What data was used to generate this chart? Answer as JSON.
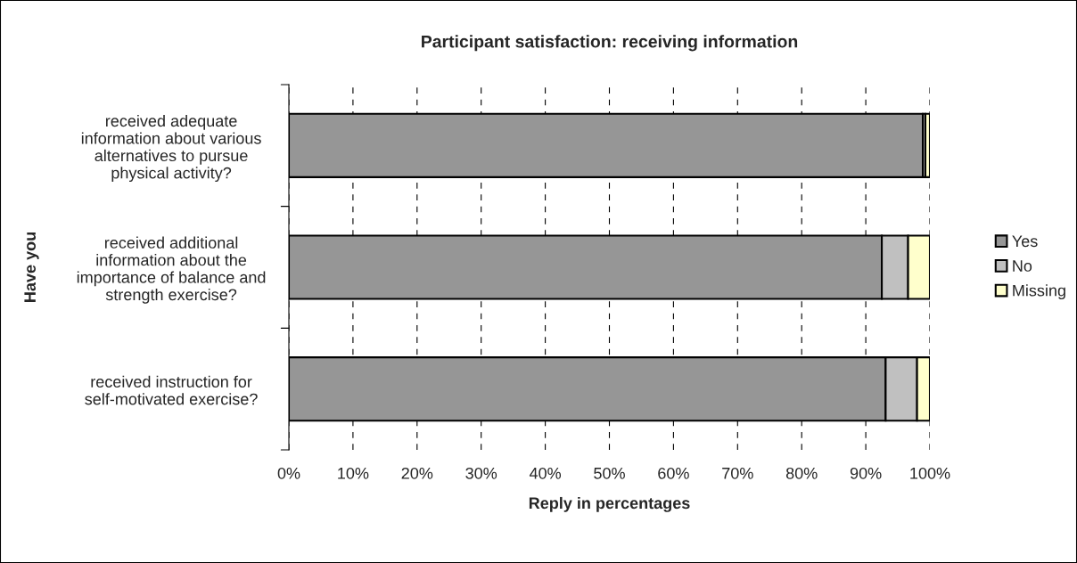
{
  "chart_data": {
    "type": "bar",
    "orientation": "horizontal",
    "stacked": true,
    "title": "Participant satisfaction: receiving information",
    "xlabel": "Reply in percentages",
    "ylabel": "Have you",
    "categories": [
      "received adequate\ninformation about various\nalternatives to pursue\nphysical activity?",
      "received additional\ninformation about the\nimportance of balance and\nstrength exercise?",
      "received instruction for\nself-motivated exercise?"
    ],
    "series": [
      {
        "name": "Yes",
        "color": "#969696",
        "values": [
          98.9,
          92.5,
          93.1
        ]
      },
      {
        "name": "No",
        "color": "#c0c0c0",
        "values": [
          0.4,
          4.1,
          4.9
        ]
      },
      {
        "name": "Missing",
        "color": "#ffffcc",
        "values": [
          0.7,
          3.4,
          2.0
        ]
      }
    ],
    "xlim": [
      0,
      100
    ],
    "xticks": [
      {
        "value": 0,
        "label": "0%"
      },
      {
        "value": 10,
        "label": "10%"
      },
      {
        "value": 20,
        "label": "20%"
      },
      {
        "value": 30,
        "label": "30%"
      },
      {
        "value": 40,
        "label": "40%"
      },
      {
        "value": 50,
        "label": "50%"
      },
      {
        "value": 60,
        "label": "60%"
      },
      {
        "value": 70,
        "label": "70%"
      },
      {
        "value": 80,
        "label": "80%"
      },
      {
        "value": 90,
        "label": "90%"
      },
      {
        "value": 100,
        "label": "100%"
      }
    ],
    "grid": "x",
    "legend": "right"
  }
}
